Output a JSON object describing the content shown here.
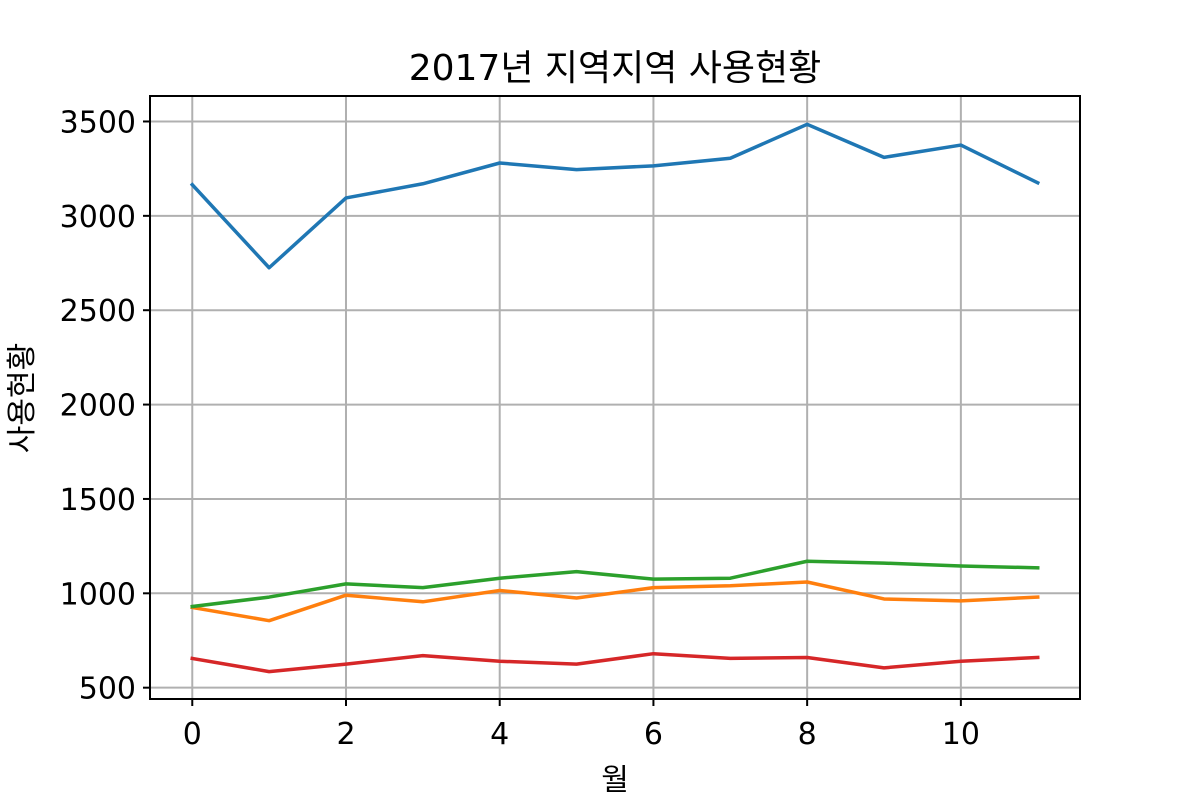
{
  "chart_data": {
    "type": "line",
    "title": "2017년 지역지역 사용현황",
    "xlabel": "월",
    "ylabel": "사용현황",
    "x": [
      0,
      1,
      2,
      3,
      4,
      5,
      6,
      7,
      8,
      9,
      10,
      11
    ],
    "xlim": [
      -0.55,
      11.55
    ],
    "ylim": [
      440,
      3635
    ],
    "xticks": [
      0,
      2,
      4,
      6,
      8,
      10
    ],
    "yticks": [
      500,
      1000,
      1500,
      2000,
      2500,
      3000,
      3500
    ],
    "grid": true,
    "series": [
      {
        "color": "#1f77b4",
        "values": [
          3165,
          2725,
          3095,
          3170,
          3280,
          3245,
          3265,
          3305,
          3485,
          3310,
          3375,
          3175
        ]
      },
      {
        "color": "#ff7f0e",
        "values": [
          925,
          855,
          990,
          955,
          1015,
          975,
          1030,
          1040,
          1060,
          970,
          960,
          980
        ]
      },
      {
        "color": "#2ca02c",
        "values": [
          930,
          980,
          1050,
          1030,
          1080,
          1115,
          1075,
          1080,
          1170,
          1160,
          1145,
          1135
        ]
      },
      {
        "color": "#d62728",
        "values": [
          655,
          585,
          625,
          670,
          640,
          625,
          680,
          655,
          660,
          605,
          640,
          660
        ]
      }
    ]
  }
}
